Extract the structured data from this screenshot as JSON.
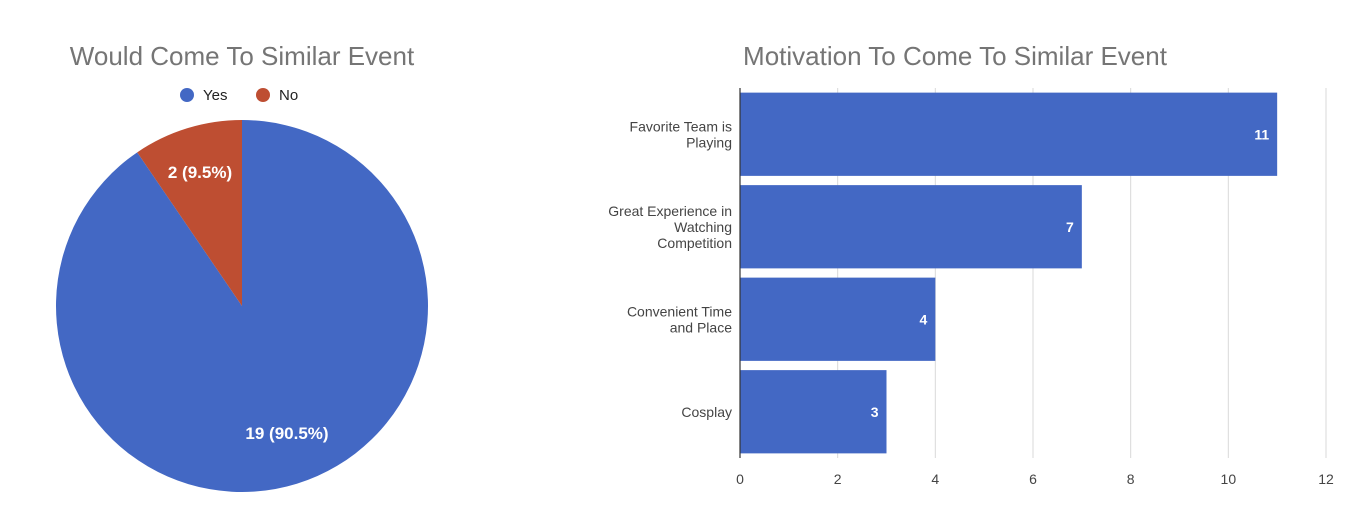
{
  "colors": {
    "blue": "#4368C4",
    "red": "#BE4E32",
    "grid": "#d9d9d9",
    "axis": "#333333"
  },
  "chart_data": [
    {
      "type": "pie",
      "title": "Would Come To Similar Event",
      "legend_position": "top",
      "slices": [
        {
          "name": "Yes",
          "value": 19,
          "label": "19 (90.5%)",
          "color": "#4368C4"
        },
        {
          "name": "No",
          "value": 2,
          "label": "2 (9.5%)",
          "color": "#BE4E32"
        }
      ]
    },
    {
      "type": "bar",
      "orientation": "horizontal",
      "title": "Motivation To Come To Similar Event",
      "categories": [
        [
          "Favorite Team is",
          "Playing"
        ],
        [
          "Great Experience in",
          "Watching",
          "Competition"
        ],
        [
          "Convenient Time",
          "and Place"
        ],
        [
          "Cosplay"
        ]
      ],
      "values": [
        11,
        7,
        4,
        3
      ],
      "value_labels": [
        "11",
        "7",
        "4",
        "3"
      ],
      "xlim": [
        0,
        12
      ],
      "xticks": [
        "0",
        "2",
        "4",
        "6",
        "8",
        "10",
        "12"
      ],
      "grid": true,
      "color": "#4368C4"
    }
  ]
}
